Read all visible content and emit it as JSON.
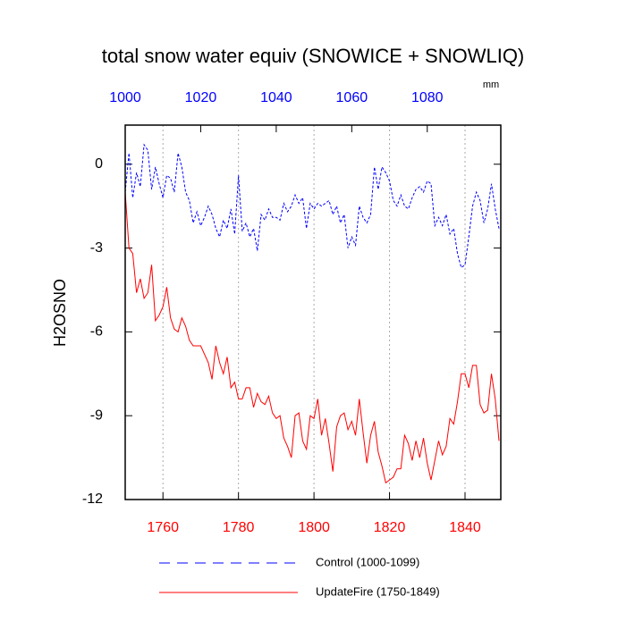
{
  "chart_data": {
    "type": "line",
    "title": "total snow water equiv (SNOWICE + SNOWLIQ)",
    "ylabel": "H2OSNO",
    "units": "mm",
    "xlim": [
      1750,
      1849
    ],
    "xticks": [
      1760,
      1780,
      1800,
      1820,
      1840
    ],
    "xcolor": "#ff0000",
    "x2lim": [
      1000,
      1099
    ],
    "x2ticks": [
      1000,
      1020,
      1040,
      1060,
      1080
    ],
    "x2color": "#0000ff",
    "ylim": [
      -12,
      1.4
    ],
    "yticks": [
      0,
      -3,
      -6,
      -9,
      -12
    ],
    "grid": "x",
    "series": [
      {
        "name": "Control (1000-1099)",
        "color": "#0000ff",
        "dash": true,
        "axis": "x2",
        "x": [
          1000,
          1001,
          1002,
          1003,
          1004,
          1005,
          1006,
          1007,
          1008,
          1009,
          1010,
          1011,
          1012,
          1013,
          1014,
          1015,
          1016,
          1017,
          1018,
          1019,
          1020,
          1021,
          1022,
          1023,
          1024,
          1025,
          1026,
          1027,
          1028,
          1029,
          1030,
          1031,
          1032,
          1033,
          1034,
          1035,
          1036,
          1037,
          1038,
          1039,
          1040,
          1041,
          1042,
          1043,
          1044,
          1045,
          1046,
          1047,
          1048,
          1049,
          1050,
          1051,
          1052,
          1053,
          1054,
          1055,
          1056,
          1057,
          1058,
          1059,
          1060,
          1061,
          1062,
          1063,
          1064,
          1065,
          1066,
          1067,
          1068,
          1069,
          1070,
          1071,
          1072,
          1073,
          1074,
          1075,
          1076,
          1077,
          1078,
          1079,
          1080,
          1081,
          1082,
          1083,
          1084,
          1085,
          1086,
          1087,
          1088,
          1089,
          1090,
          1091,
          1092,
          1093,
          1094,
          1095,
          1096,
          1097,
          1098,
          1099
        ],
        "values": [
          -1.0,
          0.4,
          -1.2,
          -0.3,
          -0.8,
          0.7,
          0.5,
          -0.9,
          -0.1,
          -0.7,
          -1.2,
          -0.4,
          -0.5,
          -1.0,
          0.4,
          -0.1,
          -1.0,
          -1.3,
          -2.1,
          -1.7,
          -2.2,
          -1.9,
          -1.5,
          -1.8,
          -2.3,
          -2.6,
          -2.0,
          -2.3,
          -1.6,
          -2.5,
          -0.4,
          -2.4,
          -2.1,
          -2.6,
          -2.3,
          -3.1,
          -1.8,
          -2.0,
          -1.6,
          -1.9,
          -1.9,
          -2.0,
          -1.4,
          -1.7,
          -1.5,
          -1.1,
          -1.4,
          -1.2,
          -2.3,
          -1.4,
          -1.6,
          -1.4,
          -1.5,
          -1.4,
          -1.3,
          -1.8,
          -1.5,
          -2.1,
          -1.8,
          -3.0,
          -2.6,
          -2.9,
          -1.5,
          -1.9,
          -2.1,
          -1.8,
          -0.1,
          -0.9,
          -0.1,
          -0.3,
          -0.6,
          -1.3,
          -1.5,
          -1.1,
          -1.5,
          -1.6,
          -1.2,
          -0.9,
          -0.8,
          -1.0,
          -0.6,
          -0.7,
          -2.2,
          -1.9,
          -2.2,
          -1.8,
          -2.5,
          -2.3,
          -3.2,
          -3.7,
          -3.6,
          -2.6,
          -1.5,
          -1.0,
          -1.3,
          -2.1,
          -1.6,
          -0.7,
          -1.6,
          -2.3
        ]
      },
      {
        "name": "UpdateFire (1750-1849)",
        "color": "#ff0000",
        "dash": false,
        "axis": "x",
        "x": [
          1750,
          1751,
          1752,
          1753,
          1754,
          1755,
          1756,
          1757,
          1758,
          1759,
          1760,
          1761,
          1762,
          1763,
          1764,
          1765,
          1766,
          1767,
          1768,
          1769,
          1770,
          1771,
          1772,
          1773,
          1774,
          1775,
          1776,
          1777,
          1778,
          1779,
          1780,
          1781,
          1782,
          1783,
          1784,
          1785,
          1786,
          1787,
          1788,
          1789,
          1790,
          1791,
          1792,
          1793,
          1794,
          1795,
          1796,
          1797,
          1798,
          1799,
          1800,
          1801,
          1802,
          1803,
          1804,
          1805,
          1806,
          1807,
          1808,
          1809,
          1810,
          1811,
          1812,
          1813,
          1814,
          1815,
          1816,
          1817,
          1818,
          1819,
          1820,
          1821,
          1822,
          1823,
          1824,
          1825,
          1826,
          1827,
          1828,
          1829,
          1830,
          1831,
          1832,
          1833,
          1834,
          1835,
          1836,
          1837,
          1838,
          1839,
          1840,
          1841,
          1842,
          1843,
          1844,
          1845,
          1846,
          1847,
          1848,
          1849
        ],
        "values": [
          -1.0,
          -3.0,
          -3.2,
          -4.6,
          -4.1,
          -4.8,
          -4.6,
          -3.6,
          -5.6,
          -5.4,
          -5.1,
          -4.4,
          -5.5,
          -5.9,
          -6.0,
          -5.5,
          -5.8,
          -6.3,
          -6.5,
          -6.5,
          -6.5,
          -6.8,
          -7.1,
          -7.7,
          -6.5,
          -7.1,
          -7.5,
          -6.9,
          -8.0,
          -7.8,
          -8.4,
          -8.4,
          -8.0,
          -8.0,
          -8.7,
          -8.2,
          -8.5,
          -8.6,
          -8.3,
          -8.9,
          -9.1,
          -9.0,
          -9.8,
          -10.1,
          -10.5,
          -9.0,
          -8.9,
          -9.9,
          -10.2,
          -9.0,
          -9.1,
          -8.4,
          -9.7,
          -9.1,
          -10.0,
          -11.0,
          -9.4,
          -9.0,
          -8.9,
          -9.5,
          -9.2,
          -9.7,
          -8.4,
          -9.6,
          -10.7,
          -9.7,
          -9.2,
          -10.3,
          -10.8,
          -11.4,
          -11.3,
          -11.2,
          -10.9,
          -10.9,
          -9.7,
          -10.0,
          -10.6,
          -9.9,
          -10.5,
          -9.8,
          -10.7,
          -11.3,
          -10.6,
          -9.9,
          -10.4,
          -10.1,
          -9.1,
          -9.3,
          -8.5,
          -7.5,
          -7.5,
          -8.0,
          -7.2,
          -7.2,
          -8.6,
          -8.9,
          -8.8,
          -7.5,
          -8.4,
          -9.9
        ]
      }
    ]
  }
}
